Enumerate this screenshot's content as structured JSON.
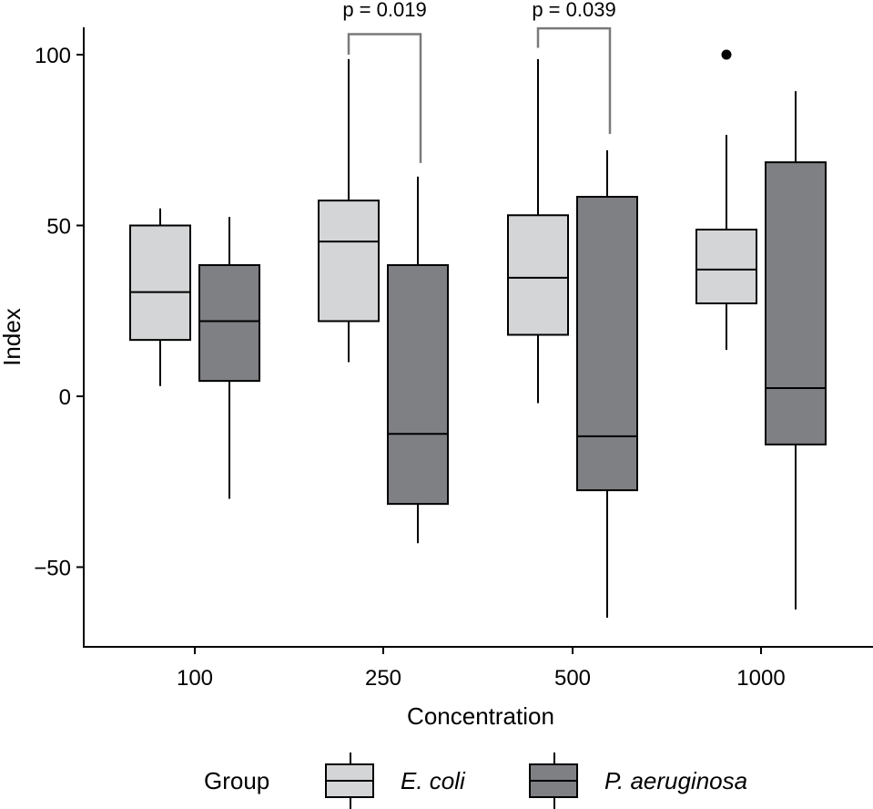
{
  "chart_data": {
    "type": "boxplot",
    "xlabel": "Concentration",
    "ylabel": "Index",
    "categories": [
      "100",
      "250",
      "500",
      "1000"
    ],
    "ylim": [
      -73,
      112
    ],
    "yticks": [
      -50,
      0,
      50,
      100
    ],
    "ytick_labels": [
      "−50",
      "0",
      "50",
      "100"
    ],
    "grid": false,
    "legend": {
      "title": "Group",
      "placement": "bottom"
    },
    "series": [
      {
        "name": "E. coli",
        "color": "#d4d5d7",
        "boxes": [
          {
            "whisker_low": 3,
            "q1": 16.5,
            "median": 30.5,
            "q3": 50,
            "whisker_high": 55,
            "outliers": []
          },
          {
            "whisker_low": 10,
            "q1": 22,
            "median": 45.3,
            "q3": 57.3,
            "whisker_high": 98.7,
            "outliers": []
          },
          {
            "whisker_low": -2,
            "q1": 18,
            "median": 34.7,
            "q3": 53,
            "whisker_high": 98.7,
            "outliers": []
          },
          {
            "whisker_low": 13.6,
            "q1": 27.2,
            "median": 37.1,
            "q3": 48.8,
            "whisker_high": 76.5,
            "outliers": [
              100
            ]
          }
        ]
      },
      {
        "name": "P. aeruginosa",
        "color": "#7f8084",
        "boxes": [
          {
            "whisker_low": -30,
            "q1": 4.5,
            "median": 22,
            "q3": 38.4,
            "whisker_high": 52.5,
            "outliers": []
          },
          {
            "whisker_low": -43,
            "q1": -31.5,
            "median": -11,
            "q3": 38.4,
            "whisker_high": 64.3,
            "outliers": []
          },
          {
            "whisker_low": -64.8,
            "q1": -27.5,
            "median": -11.7,
            "q3": 58.4,
            "whisker_high": 72,
            "outliers": []
          },
          {
            "whisker_low": -62.4,
            "q1": -14.1,
            "median": 2.4,
            "q3": 68.5,
            "whisker_high": 89.3,
            "outliers": []
          }
        ]
      }
    ],
    "annotations": [
      {
        "category": "250",
        "label": "p = 0.019",
        "bracket_top": 106,
        "left_end": 100,
        "right_end": 68.3
      },
      {
        "category": "500",
        "label": "p = 0.039",
        "bracket_top": 107.7,
        "left_end": 102,
        "right_end": 76.8
      }
    ]
  }
}
